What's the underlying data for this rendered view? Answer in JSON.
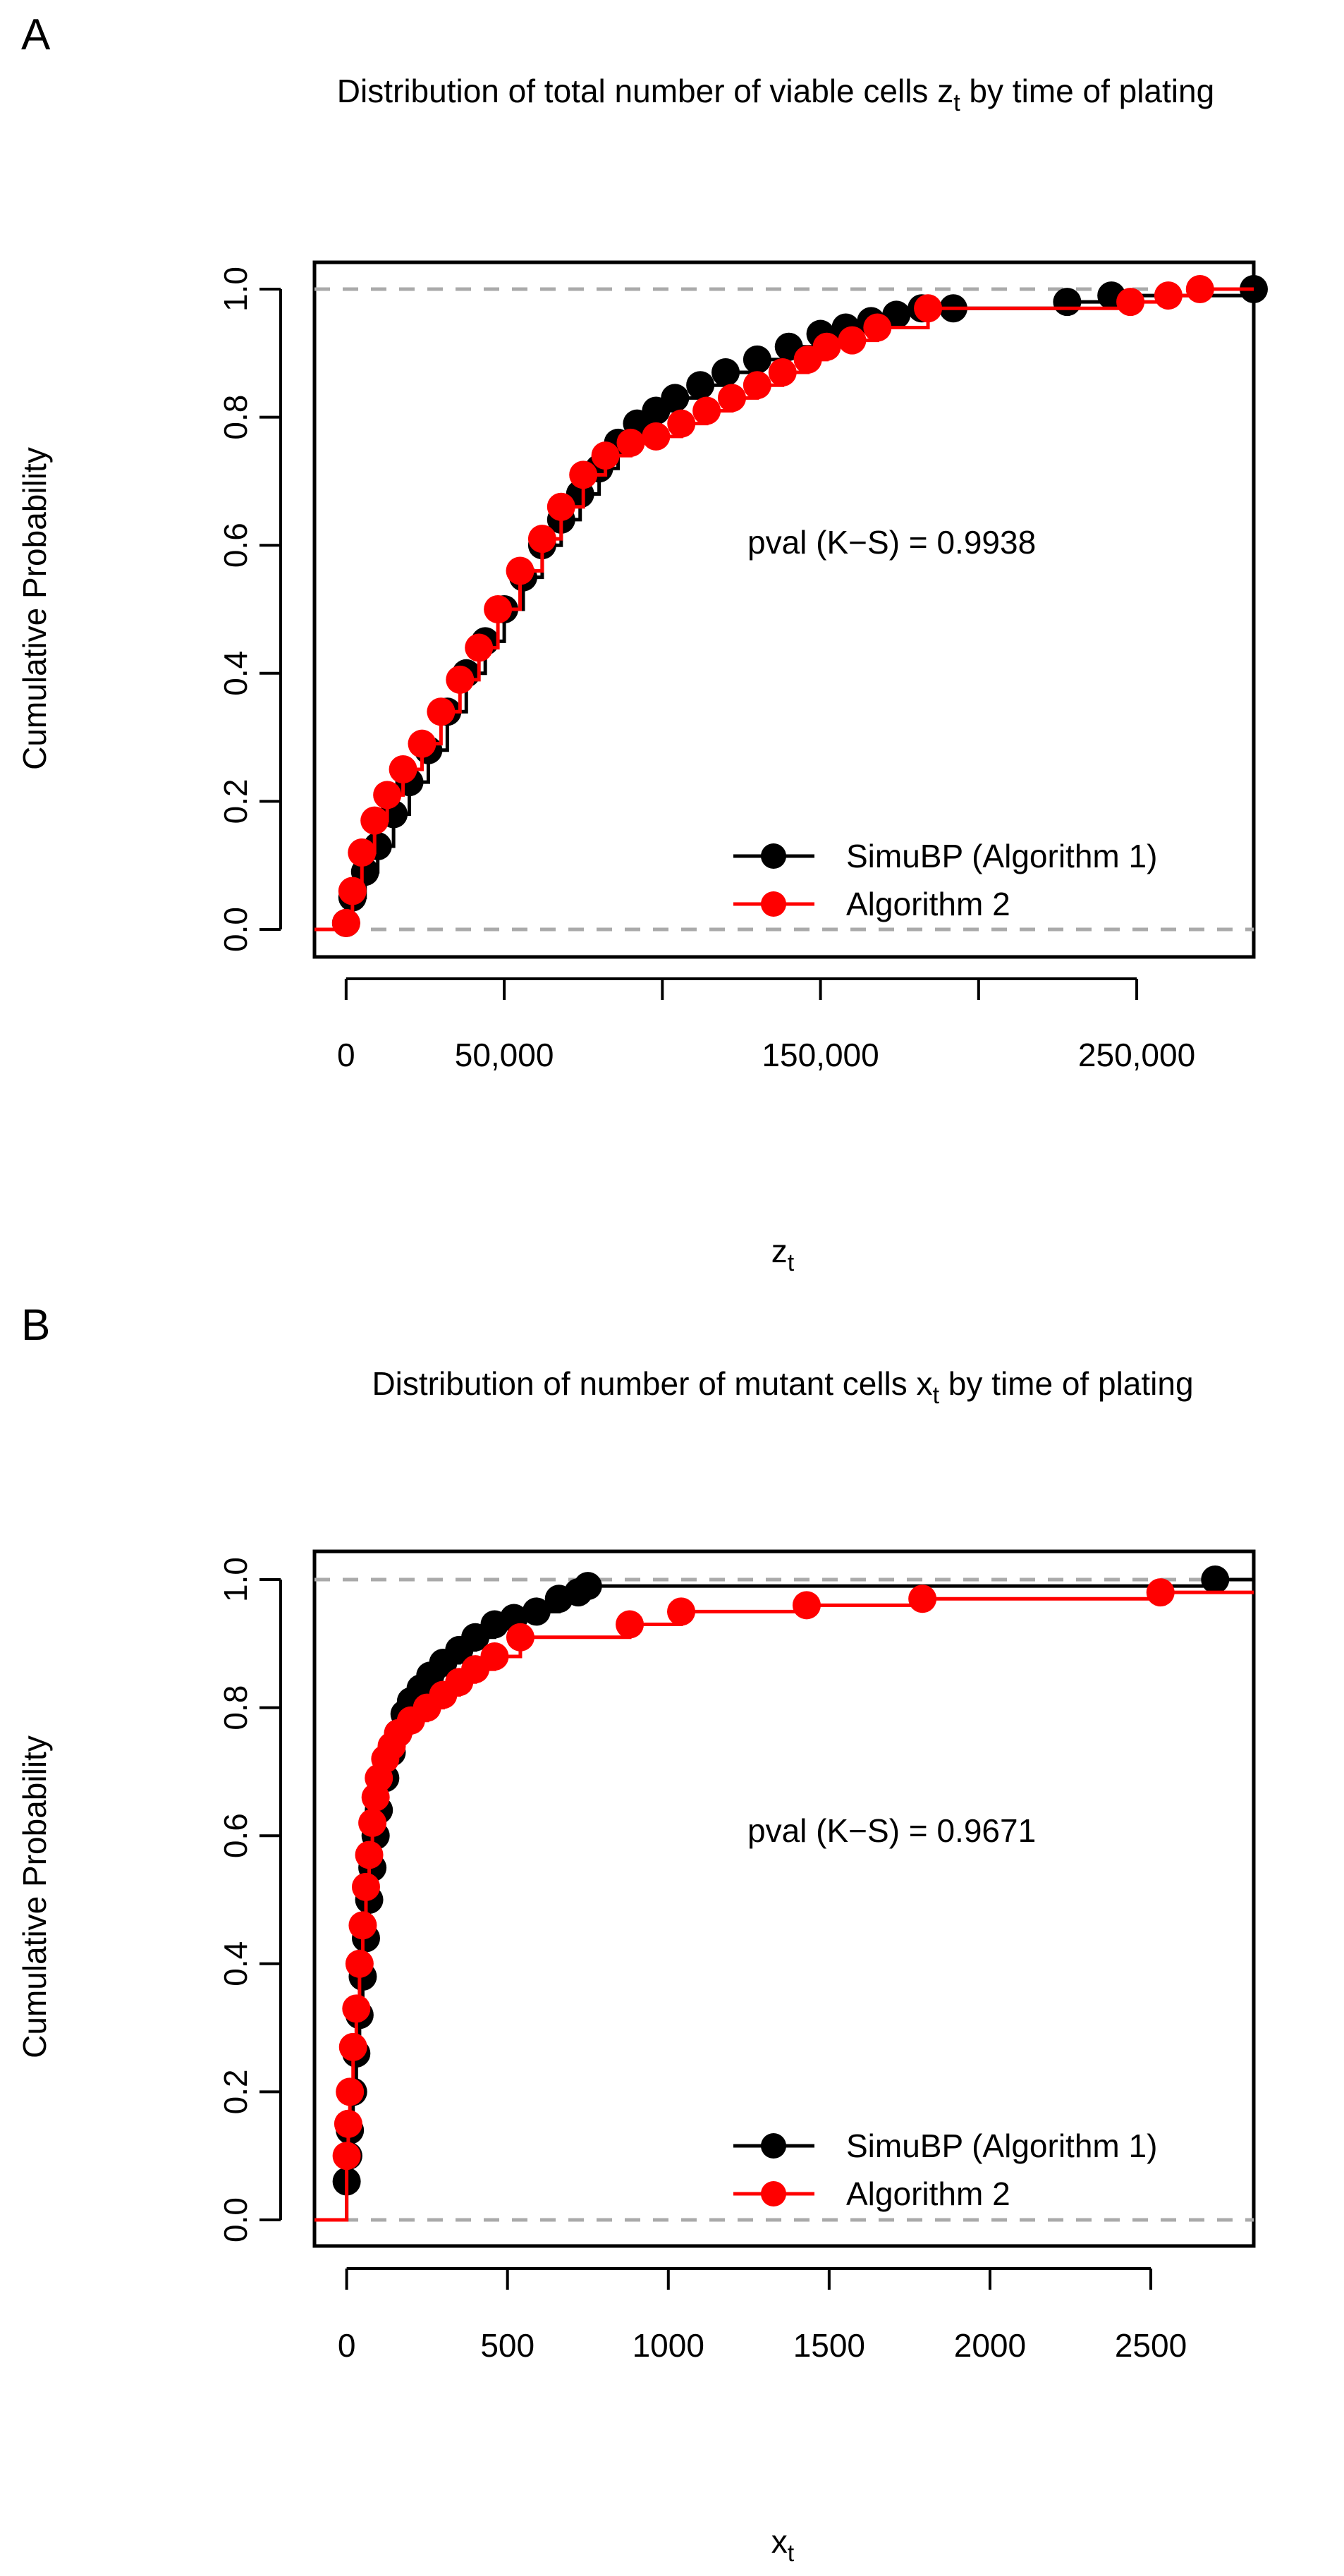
{
  "chart_data": [
    {
      "type": "line",
      "panel_label": "A",
      "title_prefix": "Distribution of total number of viable cells z",
      "title_sub": "t",
      "title_suffix": " by time of plating",
      "xlabel_main": "z",
      "xlabel_sub": "t",
      "ylabel": "Cumulative Probability",
      "xlim": [
        -10000,
        287000
      ],
      "ylim": [
        0,
        1
      ],
      "x_ticks": [
        0,
        50000,
        100000,
        150000,
        200000,
        250000
      ],
      "x_tick_labels": [
        {
          "value": 0,
          "label": "0"
        },
        {
          "value": 50000,
          "label": "50,000"
        },
        {
          "value": 150000,
          "label": "150,000"
        },
        {
          "value": 250000,
          "label": "250,000"
        }
      ],
      "y_ticks": [
        0,
        0.2,
        0.4,
        0.6,
        0.8,
        1
      ],
      "y_tick_labels": [
        "0.0",
        "0.2",
        "0.4",
        "0.6",
        "0.8",
        "1.0"
      ],
      "annotation": "pval (K−S) = 0.9938",
      "legend_position": "bottom-right",
      "series": [
        {
          "name": "SimuBP (Algorithm 1)",
          "color": "#000000",
          "x": [
            0,
            2000,
            6000,
            10000,
            15000,
            20000,
            26000,
            32000,
            38000,
            44000,
            50000,
            56000,
            62000,
            68000,
            74000,
            80000,
            86000,
            92000,
            98000,
            104000,
            112000,
            120000,
            130000,
            140000,
            150000,
            158000,
            166000,
            174000,
            182000,
            192000,
            228000,
            242000,
            287000
          ],
          "y": [
            0.01,
            0.05,
            0.09,
            0.13,
            0.18,
            0.23,
            0.28,
            0.34,
            0.4,
            0.45,
            0.5,
            0.55,
            0.6,
            0.64,
            0.68,
            0.72,
            0.76,
            0.79,
            0.81,
            0.83,
            0.85,
            0.87,
            0.89,
            0.91,
            0.93,
            0.94,
            0.95,
            0.96,
            0.97,
            0.97,
            0.98,
            0.99,
            1.0
          ]
        },
        {
          "name": "Algorithm 2",
          "color": "#ff0000",
          "x": [
            0,
            2000,
            5000,
            9000,
            13000,
            18000,
            24000,
            30000,
            36000,
            42000,
            48000,
            55000,
            62000,
            68000,
            75000,
            82000,
            90000,
            98000,
            106000,
            114000,
            122000,
            130000,
            138000,
            146000,
            152000,
            160000,
            168000,
            184000,
            248000,
            260000,
            270000
          ],
          "y": [
            0.01,
            0.06,
            0.12,
            0.17,
            0.21,
            0.25,
            0.29,
            0.34,
            0.39,
            0.44,
            0.5,
            0.56,
            0.61,
            0.66,
            0.71,
            0.74,
            0.76,
            0.77,
            0.79,
            0.81,
            0.83,
            0.85,
            0.87,
            0.89,
            0.91,
            0.92,
            0.94,
            0.97,
            0.98,
            0.99,
            1.0
          ]
        }
      ]
    },
    {
      "type": "line",
      "panel_label": "B",
      "title_prefix": "Distribution of number of mutant cells x",
      "title_sub": "t",
      "title_suffix": " by time of plating",
      "xlabel_main": "x",
      "xlabel_sub": "t",
      "ylabel": "Cumulative Probability",
      "xlim": [
        -100,
        2820
      ],
      "ylim": [
        0,
        1
      ],
      "x_ticks": [
        0,
        500,
        1000,
        1500,
        2000,
        2500
      ],
      "x_tick_labels": [
        {
          "value": 0,
          "label": "0"
        },
        {
          "value": 500,
          "label": "500"
        },
        {
          "value": 1000,
          "label": "1000"
        },
        {
          "value": 1500,
          "label": "1500"
        },
        {
          "value": 2000,
          "label": "2000"
        },
        {
          "value": 2500,
          "label": "2500"
        }
      ],
      "y_ticks": [
        0,
        0.2,
        0.4,
        0.6,
        0.8,
        1
      ],
      "y_tick_labels": [
        "0.0",
        "0.2",
        "0.4",
        "0.6",
        "0.8",
        "1.0"
      ],
      "annotation": "pval (K−S) = 0.9671",
      "legend_position": "bottom-right",
      "series": [
        {
          "name": "SimuBP (Algorithm 1)",
          "color": "#000000",
          "x": [
            0,
            5,
            10,
            20,
            30,
            40,
            50,
            60,
            70,
            80,
            90,
            100,
            120,
            140,
            160,
            180,
            200,
            230,
            260,
            300,
            350,
            400,
            460,
            520,
            590,
            660,
            720,
            750,
            2700
          ],
          "y": [
            0.06,
            0.1,
            0.14,
            0.2,
            0.26,
            0.32,
            0.38,
            0.44,
            0.5,
            0.55,
            0.6,
            0.64,
            0.69,
            0.73,
            0.76,
            0.79,
            0.81,
            0.83,
            0.85,
            0.87,
            0.89,
            0.91,
            0.93,
            0.94,
            0.95,
            0.97,
            0.98,
            0.99,
            1.0
          ]
        },
        {
          "name": "Algorithm 2",
          "color": "#ff0000",
          "x": [
            0,
            5,
            10,
            20,
            30,
            40,
            50,
            60,
            70,
            80,
            90,
            100,
            120,
            140,
            160,
            200,
            250,
            300,
            350,
            400,
            460,
            540,
            880,
            1040,
            1430,
            1790,
            2530
          ],
          "y": [
            0.1,
            0.15,
            0.2,
            0.27,
            0.33,
            0.4,
            0.46,
            0.52,
            0.57,
            0.62,
            0.66,
            0.69,
            0.72,
            0.74,
            0.76,
            0.78,
            0.8,
            0.82,
            0.84,
            0.86,
            0.88,
            0.91,
            0.93,
            0.95,
            0.96,
            0.97,
            0.98
          ]
        }
      ]
    }
  ]
}
